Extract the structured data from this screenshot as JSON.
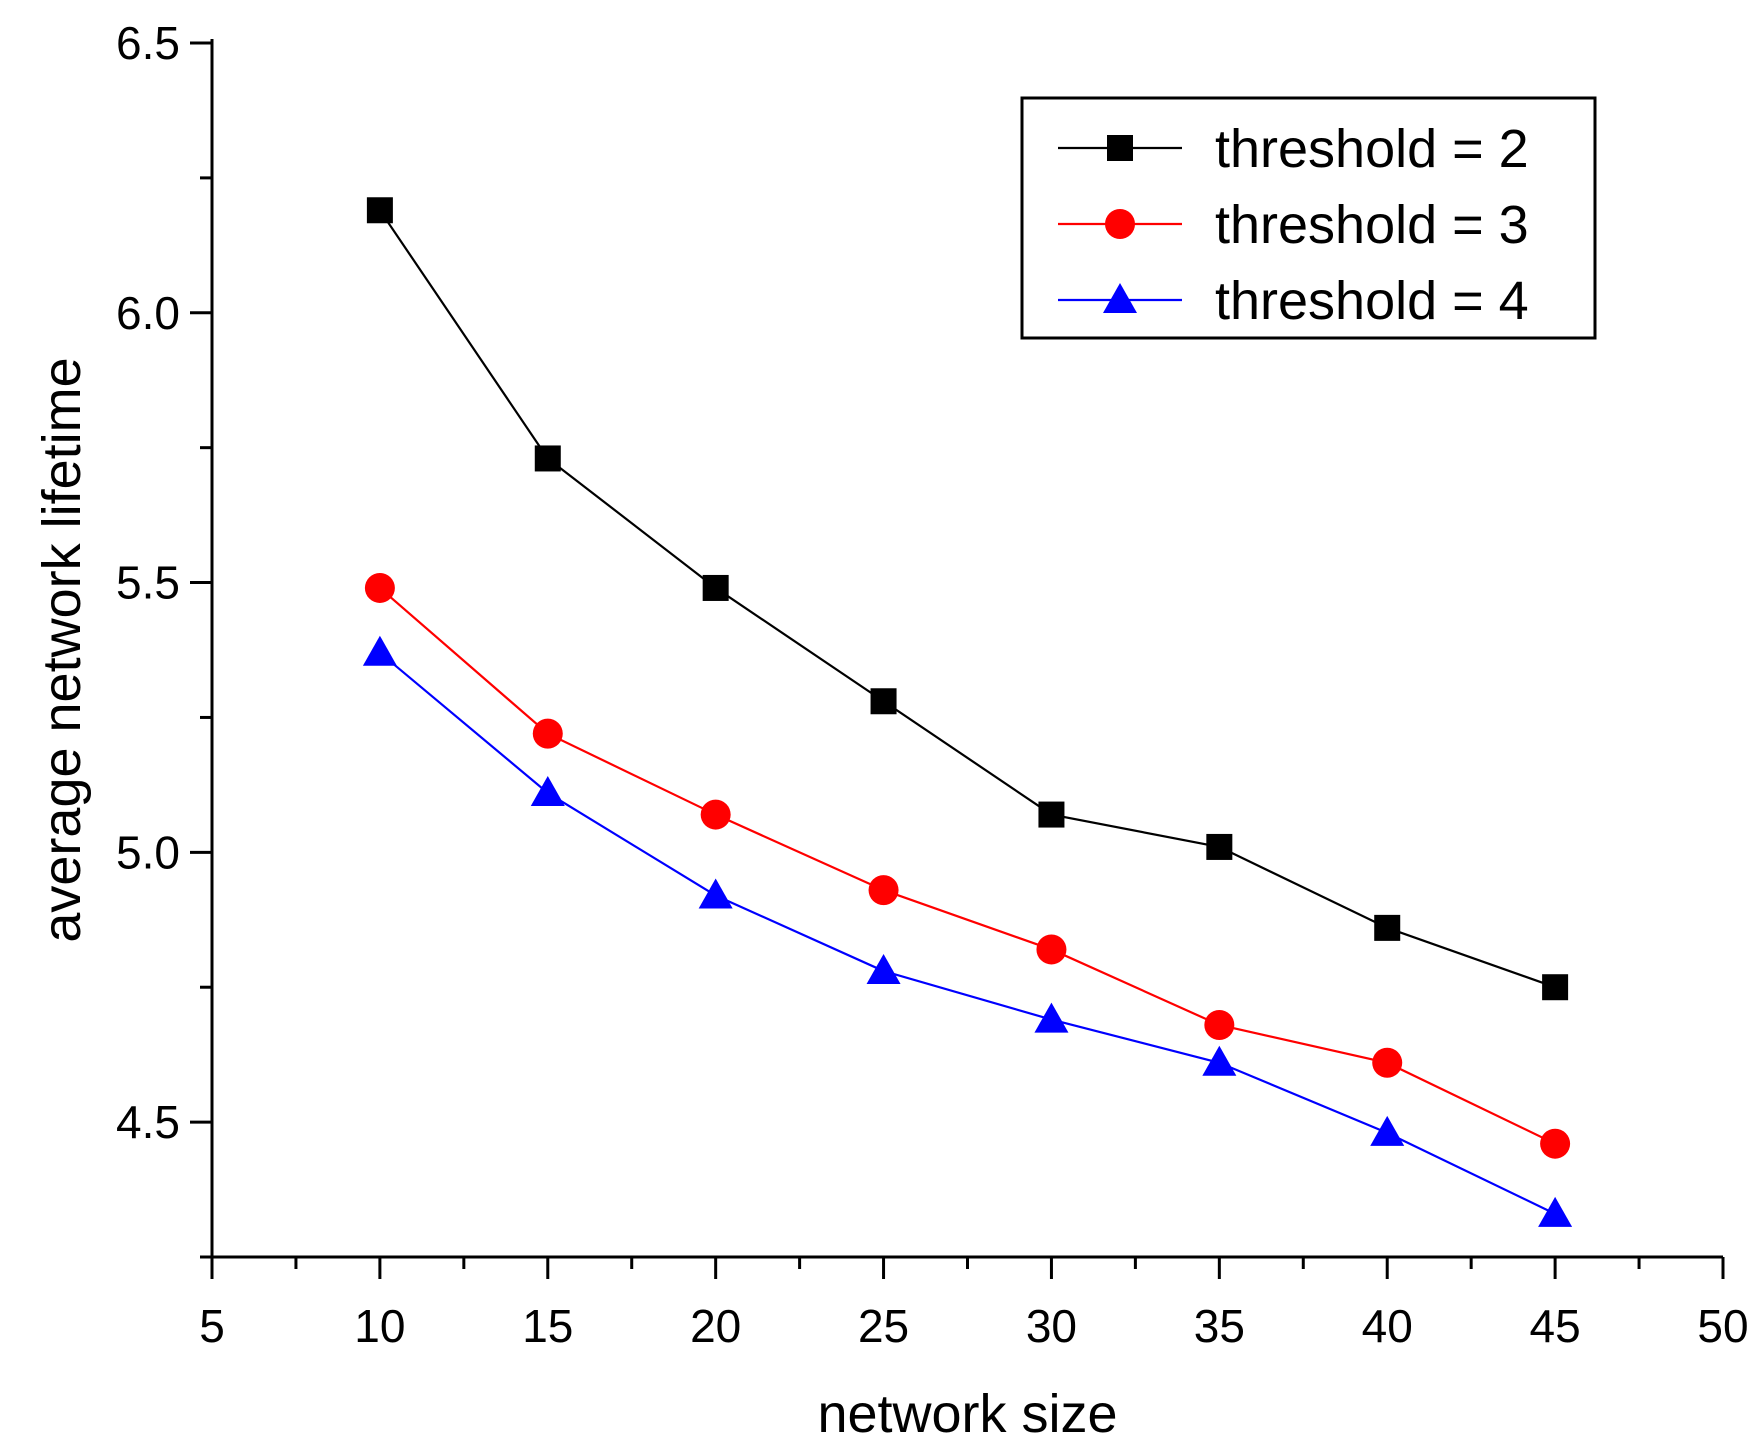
{
  "chart_data": {
    "type": "line",
    "title": "",
    "xlabel": "network size",
    "ylabel": "average network lifetime",
    "xlim": [
      5,
      50
    ],
    "ylim": [
      4.25,
      6.5
    ],
    "xticks": [
      5,
      10,
      15,
      20,
      25,
      30,
      35,
      40,
      45,
      50
    ],
    "xtick_labels": [
      "5",
      "10",
      "15",
      "20",
      "25",
      "30",
      "35",
      "40",
      "45",
      "50"
    ],
    "yticks": [
      4.5,
      5.0,
      5.5,
      6.0,
      6.5
    ],
    "ytick_labels": [
      "4.5",
      "5.0",
      "5.5",
      "6.0",
      "6.5"
    ],
    "grid": false,
    "legend_position": "top-right",
    "x": [
      10,
      15,
      20,
      25,
      30,
      35,
      40,
      45
    ],
    "series": [
      {
        "name": "threshold = 2",
        "color": "#000000",
        "marker": "square",
        "values": [
          6.19,
          5.73,
          5.49,
          5.28,
          5.07,
          5.01,
          4.86,
          4.75
        ]
      },
      {
        "name": "threshold = 3",
        "color": "#ff0000",
        "marker": "circle",
        "values": [
          5.49,
          5.22,
          5.07,
          4.93,
          4.82,
          4.68,
          4.61,
          4.46
        ]
      },
      {
        "name": "threshold = 4",
        "color": "#0000ff",
        "marker": "triangle",
        "values": [
          5.37,
          5.11,
          4.92,
          4.78,
          4.69,
          4.61,
          4.48,
          4.33
        ]
      }
    ]
  }
}
